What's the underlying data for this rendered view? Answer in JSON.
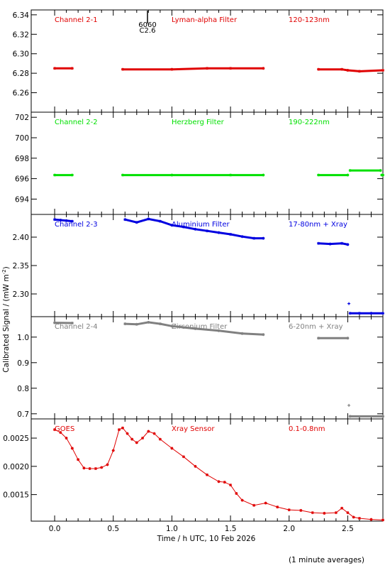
{
  "chart_data": {
    "type": "scatter",
    "xlabel": "Time / h UTC, 10 Feb 2026",
    "ylabel": "Calibrated Signal / (mW m",
    "ylabel_superscript": "-2",
    "ylabel_close": ")",
    "footnote": "(1 minute averages)",
    "xlim": [
      -0.2,
      2.8
    ],
    "x_ticks": [
      0.0,
      0.5,
      1.0,
      1.5,
      2.0,
      2.5
    ],
    "x_tick_labels": [
      "0.0",
      "0.5",
      "1.0",
      "1.5",
      "2.0",
      "2.5"
    ],
    "flare_marker": {
      "x": 0.8,
      "labels": [
        "6060",
        "C2.6"
      ]
    },
    "panels": [
      {
        "channel": "Channel 2-1",
        "filter": "Lyman-alpha Filter",
        "band": "120-123nm",
        "color": "#e00000",
        "ylim": [
          6.24,
          6.345
        ],
        "y_ticks": [
          6.26,
          6.28,
          6.3,
          6.32,
          6.34
        ],
        "y_tick_labels": [
          "6.26",
          "6.28",
          "6.30",
          "6.32",
          "6.34"
        ],
        "series": [
          {
            "x": [
              0.0,
              0.15
            ],
            "y": [
              6.285,
              6.285
            ]
          },
          {
            "x": [
              0.58,
              1.0,
              1.3,
              1.5,
              1.78
            ],
            "y": [
              6.284,
              6.284,
              6.285,
              6.285,
              6.285
            ]
          },
          {
            "x": [
              2.25,
              2.45,
              2.5,
              2.6,
              2.8
            ],
            "y": [
              6.284,
              6.284,
              6.283,
              6.282,
              6.283
            ]
          }
        ]
      },
      {
        "channel": "Channel 2-2",
        "filter": "Herzberg Filter",
        "band": "190-222nm",
        "color": "#00e000",
        "ylim": [
          692.5,
          702.5
        ],
        "y_ticks": [
          694,
          696,
          698,
          700,
          702
        ],
        "y_tick_labels": [
          "694",
          "696",
          "698",
          "700",
          "702"
        ],
        "series": [
          {
            "x": [
              0.0,
              0.15
            ],
            "y": [
              696.35,
              696.35
            ]
          },
          {
            "x": [
              0.58,
              1.0,
              1.5,
              1.78
            ],
            "y": [
              696.35,
              696.35,
              696.35,
              696.35
            ]
          },
          {
            "x": [
              2.25,
              2.5
            ],
            "y": [
              696.35,
              696.35
            ]
          },
          {
            "x": [
              2.52,
              2.78
            ],
            "y": [
              696.8,
              696.8
            ]
          },
          {
            "x": [
              2.79,
              2.8
            ],
            "y": [
              696.35,
              696.35
            ]
          }
        ]
      },
      {
        "channel": "Channel 2-3",
        "filter": "Aluminium Filter",
        "band": "17-80nm + Xray",
        "color": "#0000e0",
        "ylim": [
          2.26,
          2.44
        ],
        "y_ticks": [
          2.3,
          2.35,
          2.4
        ],
        "y_tick_labels": [
          "2.30",
          "2.35",
          "2.40"
        ],
        "series": [
          {
            "x": [
              0.0,
              0.05,
              0.1,
              0.15
            ],
            "y": [
              2.431,
              2.43,
              2.429,
              2.428
            ]
          },
          {
            "x": [
              0.6,
              0.7,
              0.8,
              0.9,
              1.0,
              1.1,
              1.2,
              1.3,
              1.4,
              1.5,
              1.6,
              1.7,
              1.78
            ],
            "y": [
              2.431,
              2.426,
              2.432,
              2.428,
              2.421,
              2.418,
              2.414,
              2.411,
              2.408,
              2.405,
              2.401,
              2.398,
              2.398
            ]
          },
          {
            "x": [
              2.25,
              2.35,
              2.45,
              2.5
            ],
            "y": [
              2.389,
              2.388,
              2.389,
              2.387
            ]
          },
          {
            "x": [
              2.52,
              2.6,
              2.7,
              2.8
            ],
            "y": [
              2.266,
              2.266,
              2.266,
              2.266
            ]
          }
        ],
        "outliers": [
          {
            "x": 2.51,
            "y": 2.283
          }
        ]
      },
      {
        "channel": "Channel 2-4",
        "filter": "Zirconium Filter",
        "band": "6-20nm + Xray",
        "color": "#808080",
        "ylim": [
          0.68,
          1.08
        ],
        "y_ticks": [
          0.7,
          0.8,
          0.9,
          1.0
        ],
        "y_tick_labels": [
          "0.7",
          "0.8",
          "0.9",
          "1.0"
        ],
        "series": [
          {
            "x": [
              0.0,
              0.15
            ],
            "y": [
              1.056,
              1.055
            ]
          },
          {
            "x": [
              0.6,
              0.7,
              0.8,
              0.9,
              1.0,
              1.2,
              1.4,
              1.6,
              1.78
            ],
            "y": [
              1.052,
              1.05,
              1.058,
              1.052,
              1.043,
              1.033,
              1.025,
              1.014,
              1.01
            ]
          },
          {
            "x": [
              2.25,
              2.5
            ],
            "y": [
              0.996,
              0.996
            ]
          },
          {
            "x": [
              2.52,
              2.8
            ],
            "y": [
              0.69,
              0.69
            ]
          }
        ],
        "outliers": [
          {
            "x": 2.51,
            "y": 0.733
          }
        ]
      },
      {
        "channel": "GOES",
        "filter": "Xray Sensor",
        "band": "0.1-0.8nm",
        "color": "#e00000",
        "ylim": [
          0.00103,
          0.00284
        ],
        "y_ticks": [
          0.0015,
          0.002,
          0.0025
        ],
        "y_tick_labels": [
          "0.0015",
          "0.0020",
          "0.0025"
        ],
        "series": [
          {
            "x": [
              0.0,
              0.05,
              0.1,
              0.15,
              0.2,
              0.25,
              0.3,
              0.35,
              0.4,
              0.45,
              0.5,
              0.55,
              0.58,
              0.62,
              0.66,
              0.7,
              0.75,
              0.8,
              0.85,
              0.9,
              1.0,
              1.1,
              1.2,
              1.3,
              1.4,
              1.45,
              1.5,
              1.55,
              1.6,
              1.7,
              1.8,
              1.9,
              2.0,
              2.1,
              2.2,
              2.3,
              2.4,
              2.45,
              2.5,
              2.55,
              2.6,
              2.7,
              2.8
            ],
            "y": [
              0.00265,
              0.0026,
              0.0025,
              0.00232,
              0.00212,
              0.00197,
              0.00196,
              0.00196,
              0.00198,
              0.00203,
              0.00228,
              0.00265,
              0.00268,
              0.00258,
              0.00248,
              0.00242,
              0.0025,
              0.00262,
              0.00258,
              0.00248,
              0.00232,
              0.00217,
              0.002,
              0.00185,
              0.00173,
              0.00172,
              0.00167,
              0.00152,
              0.0014,
              0.00131,
              0.00135,
              0.00128,
              0.00123,
              0.00122,
              0.00118,
              0.00117,
              0.00118,
              0.00126,
              0.00118,
              0.0011,
              0.00108,
              0.00106,
              0.00105
            ]
          }
        ]
      }
    ]
  }
}
